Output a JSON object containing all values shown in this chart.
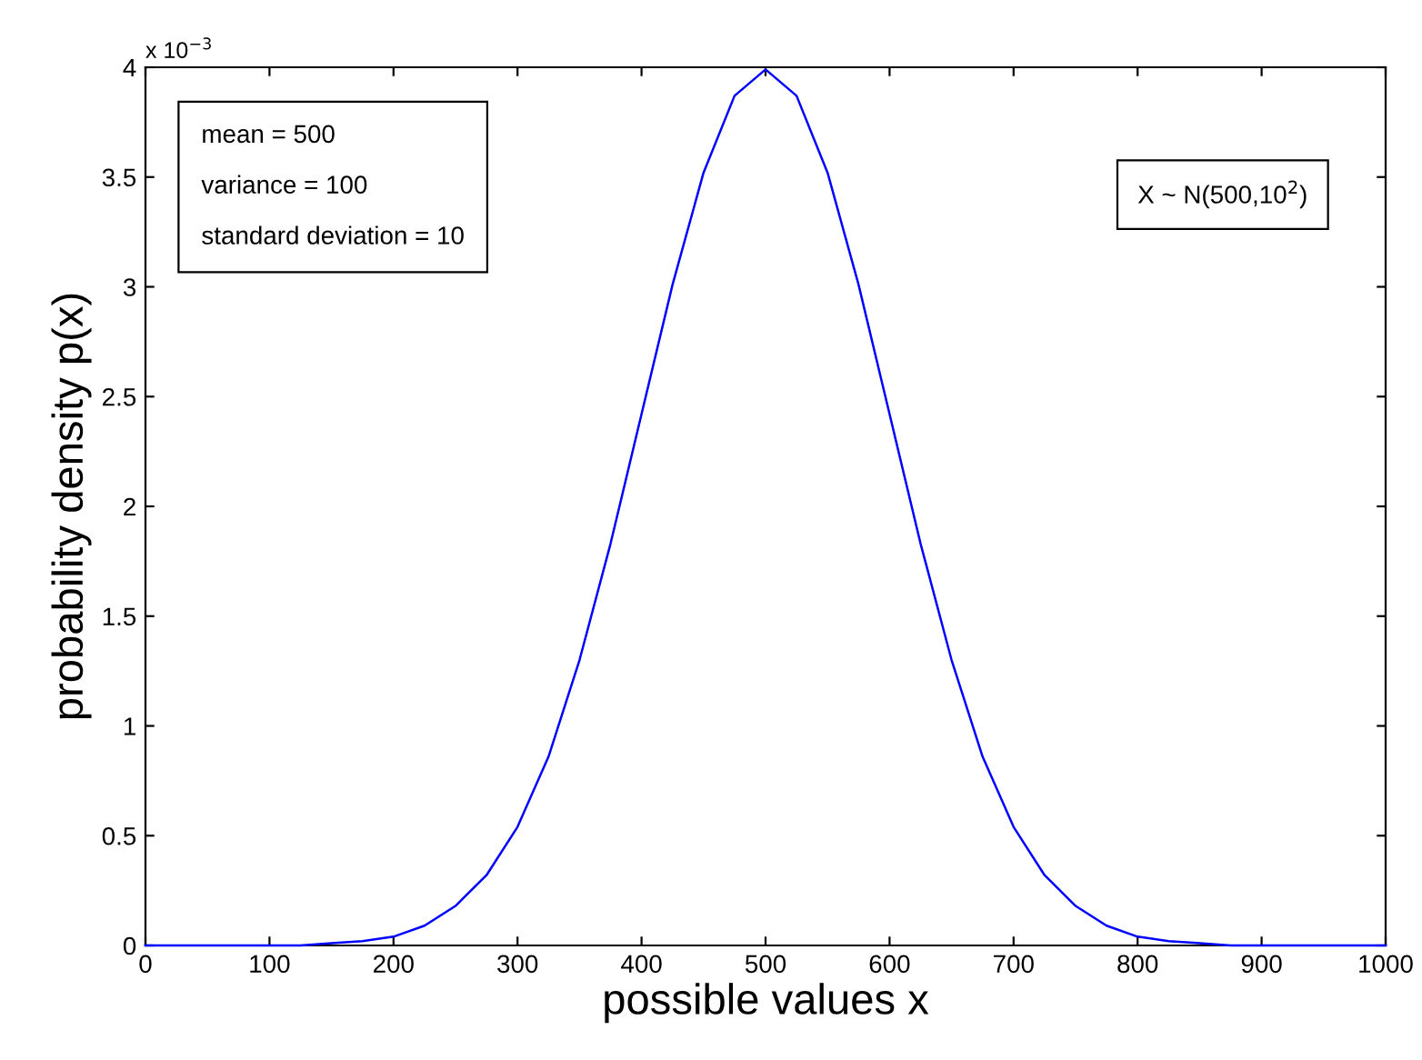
{
  "chart_data": {
    "type": "line",
    "xlabel": "possible values x",
    "ylabel": "probability density p(x)",
    "x": [
      0,
      25,
      50,
      75,
      100,
      125,
      150,
      175,
      200,
      225,
      250,
      275,
      300,
      325,
      350,
      375,
      400,
      425,
      450,
      475,
      500,
      525,
      550,
      575,
      600,
      625,
      650,
      675,
      700,
      725,
      750,
      775,
      800,
      825,
      850,
      875,
      900,
      925,
      950,
      975,
      1000
    ],
    "series": [
      {
        "color": "#0000ff",
        "values": [
          0,
          0,
          0,
          0,
          0,
          0,
          0.01,
          0.02,
          0.04,
          0.09,
          0.18,
          0.32,
          0.54,
          0.86,
          1.3,
          1.83,
          2.42,
          3.01,
          3.52,
          3.87,
          3.99,
          3.87,
          3.52,
          3.01,
          2.42,
          1.83,
          1.3,
          0.86,
          0.54,
          0.32,
          0.18,
          0.09,
          0.04,
          0.02,
          0.01,
          0,
          0,
          0,
          0,
          0,
          0
        ]
      }
    ],
    "xlim": [
      0,
      1000
    ],
    "ylim": [
      0,
      4
    ],
    "xticks": [
      0,
      100,
      200,
      300,
      400,
      500,
      600,
      700,
      800,
      900,
      1000
    ],
    "yticks": [
      0,
      0.5,
      1,
      1.5,
      2,
      2.5,
      3,
      3.5,
      4
    ],
    "grid": false,
    "legend": false,
    "marker": "none",
    "line_style": "solid",
    "annotations": [
      "x 10$^{−3}$",
      "mean = 500\n\nvariance = 100\n\nstandard deviation = 10",
      "X ~ N(500,10$^{2}$)"
    ]
  }
}
